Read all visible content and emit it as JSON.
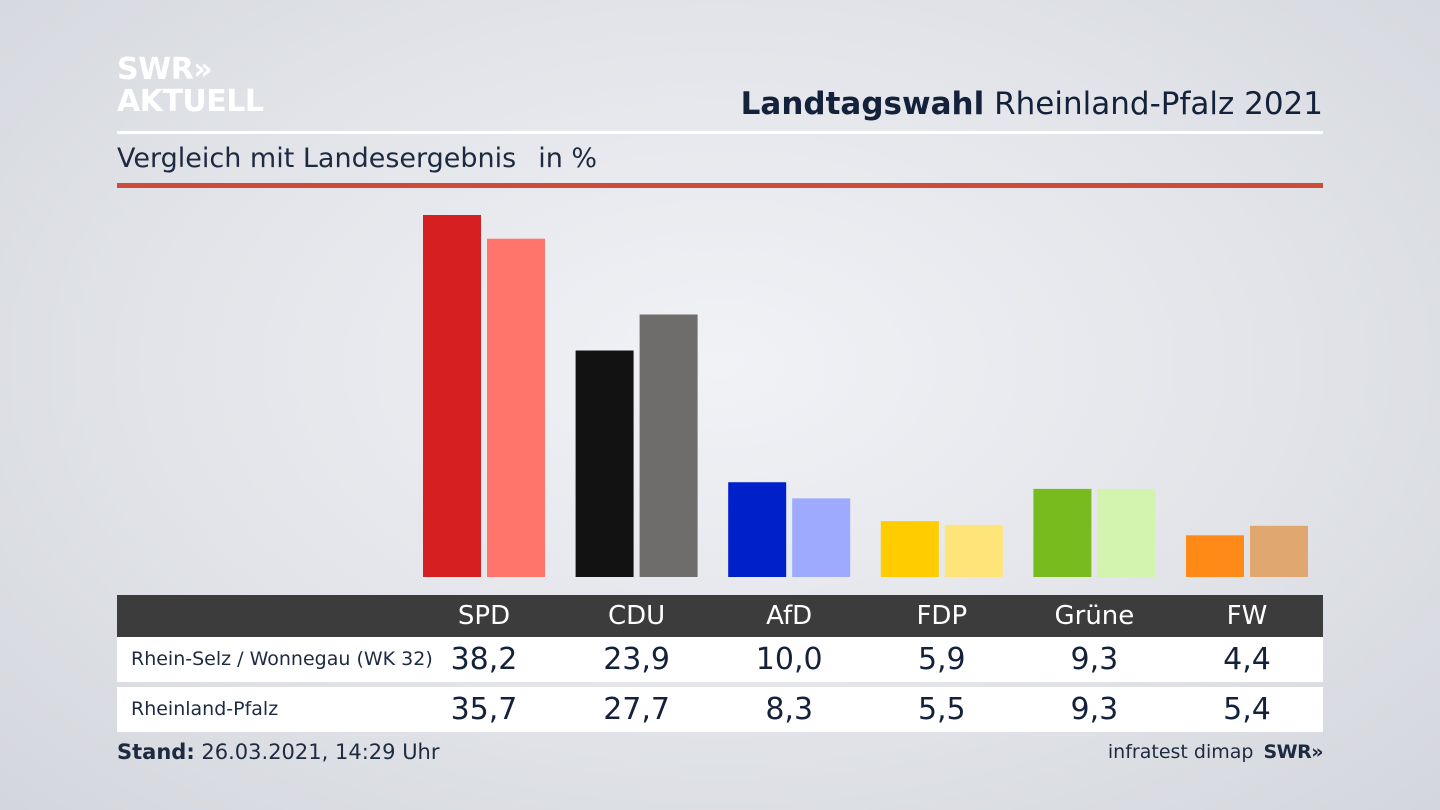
{
  "header": {
    "logo_line1": "SWR»",
    "logo_line2": "AKTUELL",
    "title_bold": "Landtagswahl",
    "title_rest": "Rheinland-Pfalz 2021",
    "subtitle": "Vergleich mit Landesergebnis",
    "unit": "in %"
  },
  "footer": {
    "stand_label": "Stand:",
    "stand_value": "26.03.2021, 14:29 Uhr",
    "source": "infratest dimap",
    "brand": "SWR»"
  },
  "chart_data": {
    "type": "bar",
    "title": "Landtagswahl Rheinland-Pfalz 2021",
    "subtitle": "Vergleich mit Landesergebnis",
    "ylabel": "in %",
    "categories": [
      "SPD",
      "CDU",
      "AfD",
      "FDP",
      "Grüne",
      "FW"
    ],
    "series": [
      {
        "name": "Rhein-Selz / Wonnegau (WK 32)",
        "values": [
          38.2,
          23.9,
          10.0,
          5.9,
          9.3,
          4.4
        ],
        "labels": [
          "38,2",
          "23,9",
          "10,0",
          "5,9",
          "9,3",
          "4,4"
        ],
        "colors": [
          "#d51f20",
          "#121212",
          "#0021c9",
          "#ffcc00",
          "#77bb1f",
          "#ff8a18"
        ]
      },
      {
        "name": "Rheinland-Pfalz",
        "values": [
          35.7,
          27.7,
          8.3,
          5.5,
          9.3,
          5.4
        ],
        "labels": [
          "35,7",
          "27,7",
          "8,3",
          "5,5",
          "9,3",
          "5,4"
        ],
        "colors": [
          "#ff746b",
          "#6e6d6b",
          "#9daafe",
          "#ffe47a",
          "#d2f4ae",
          "#e0a870"
        ]
      }
    ],
    "ylim": [
      0,
      38.2
    ],
    "grid": false,
    "legend": "table below chart"
  }
}
